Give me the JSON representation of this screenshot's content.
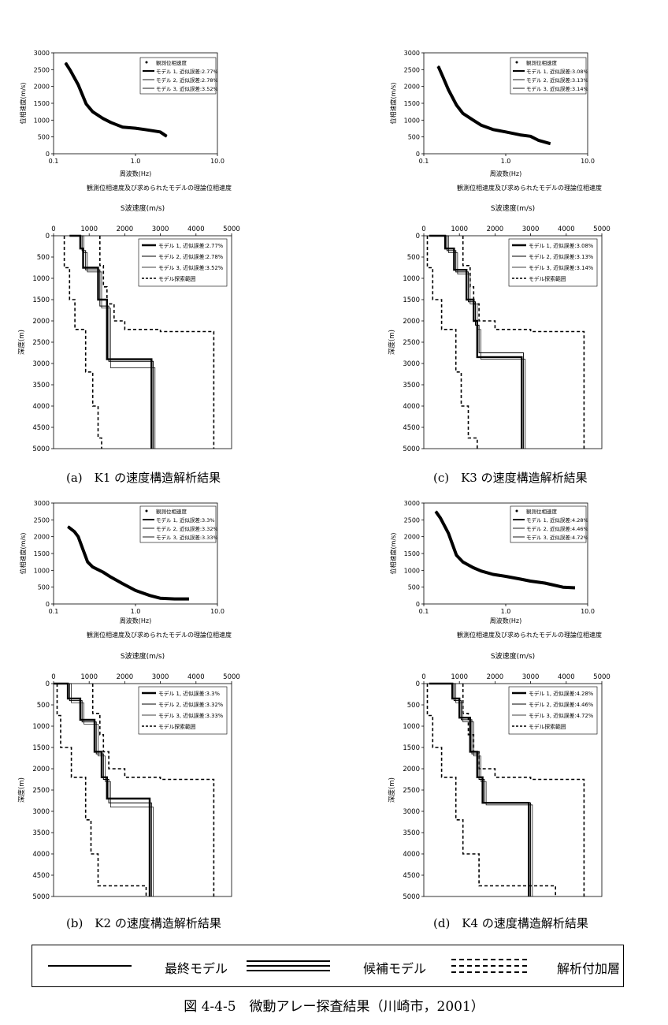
{
  "colors": {
    "ink": "#000000",
    "background": "#ffffff"
  },
  "shared": {
    "phase_xlabel": "周波数(Hz)",
    "phase_ylabel": "位相速度(m/s)",
    "phase_caption": "観測位相速度及び求められたモデルの理論位相速度",
    "vs_xlabel": "S波速度(m/s)",
    "vs_ylabel": "深度(m)",
    "phase_xticks": [
      "0.1",
      "1.0",
      "10.0"
    ],
    "phase_yticks": [
      "0",
      "500",
      "1000",
      "1500",
      "2000",
      "2500",
      "3000"
    ],
    "vs_xticks": [
      "0",
      "1000",
      "2000",
      "3000",
      "4000",
      "5000"
    ],
    "vs_yticks": [
      "0",
      "500",
      "1000",
      "1500",
      "2000",
      "2500",
      "3000",
      "3500",
      "4000",
      "4500",
      "5000"
    ]
  },
  "legend": {
    "final_model": "最終モデル",
    "candidate_model": "候補モデル",
    "added_layer": "解析付加層"
  },
  "figure_caption": "図 4-4-5　微動アレー探査結果（川崎市，2001）",
  "chart_data": [
    {
      "id": "K1",
      "caption": "(a)　K1 の速度構造解析結果",
      "phase": {
        "type": "line",
        "xscale": "log",
        "xlim": [
          0.1,
          10
        ],
        "ylim": [
          0,
          3000
        ],
        "legend": [
          "観測位相速度",
          "モデル 1, 近似誤差:2.77%",
          "モデル 2, 近似誤差:2.78%",
          "モデル 3, 近似誤差:3.52%"
        ],
        "x": [
          0.14,
          0.16,
          0.2,
          0.25,
          0.3,
          0.4,
          0.5,
          0.7,
          1.0,
          1.3,
          2.0,
          2.4
        ],
        "y": [
          2700,
          2480,
          2050,
          1480,
          1250,
          1050,
          930,
          790,
          760,
          720,
          650,
          520
        ]
      },
      "vs": {
        "type": "line",
        "xlim": [
          0,
          5000
        ],
        "ylim": [
          0,
          5000
        ],
        "y_reversed": true,
        "legend": [
          "モデル 1, 近似誤差:2.77%",
          "モデル 2, 近似誤差:2.78%",
          "モデル 3, 近似誤差:3.52%",
          "モデル探索範囲"
        ],
        "series": [
          {
            "x": [
              450,
              750,
              750,
              830,
              830,
              1250,
              1250,
              1500,
              1500,
              2750,
              2750
            ],
            "y": [
              0,
              0,
              300,
              300,
              750,
              750,
              1500,
              1500,
              2900,
              2900,
              5000
            ]
          },
          {
            "x": [
              500,
              800,
              800,
              900,
              900,
              1300,
              1300,
              1550,
              1550,
              2800,
              2800
            ],
            "y": [
              0,
              0,
              350,
              350,
              800,
              800,
              1650,
              1650,
              2950,
              2950,
              5000
            ]
          },
          {
            "x": [
              550,
              850,
              850,
              950,
              950,
              1350,
              1350,
              1600,
              1600,
              2850,
              2850
            ],
            "y": [
              0,
              0,
              400,
              400,
              850,
              850,
              1700,
              1700,
              3100,
              3100,
              5000
            ]
          },
          {
            "x": [
              300,
              300,
              450,
              450,
              600,
              600,
              900,
              900,
              1100,
              1100,
              1250,
              1250,
              1350,
              1350
            ],
            "y": [
              0,
              750,
              750,
              1500,
              1500,
              2200,
              2200,
              3200,
              3200,
              4000,
              4000,
              4750,
              4750,
              5000
            ]
          },
          {
            "x": [
              1300,
              1300,
              1400,
              1400,
              1500,
              1500,
              1700,
              1700,
              2000,
              2000,
              3000,
              3000,
              4500,
              4500
            ],
            "y": [
              0,
              700,
              700,
              1200,
              1200,
              1600,
              1600,
              2000,
              2000,
              2200,
              2200,
              2250,
              2250,
              5000
            ]
          }
        ]
      }
    },
    {
      "id": "K3",
      "caption": "(c)　K3 の速度構造解析結果",
      "phase": {
        "type": "line",
        "xscale": "log",
        "xlim": [
          0.1,
          10
        ],
        "ylim": [
          0,
          3000
        ],
        "legend": [
          "観測位相速度",
          "モデル 1, 近似誤差:3.08%",
          "モデル 2, 近似誤差:3.13%",
          "モデル 3, 近似誤差:3.14%"
        ],
        "x": [
          0.15,
          0.17,
          0.2,
          0.25,
          0.3,
          0.4,
          0.5,
          0.7,
          1.0,
          1.5,
          2.0,
          2.5,
          3.5
        ],
        "y": [
          2600,
          2300,
          1900,
          1450,
          1200,
          1000,
          850,
          720,
          650,
          560,
          520,
          400,
          300
        ]
      },
      "vs": {
        "type": "line",
        "xlim": [
          0,
          5000
        ],
        "ylim": [
          0,
          5000
        ],
        "y_reversed": true,
        "legend": [
          "モデル 1, 近似誤差:3.08%",
          "モデル 2, 近似誤差:3.13%",
          "モデル 3, 近似誤差:3.14%",
          "モデル探索範囲"
        ],
        "series": [
          {
            "x": [
              150,
              600,
              600,
              850,
              850,
              1200,
              1200,
              1400,
              1400,
              1500,
              1500,
              2750,
              2750
            ],
            "y": [
              0,
              0,
              300,
              300,
              800,
              800,
              1500,
              1500,
              2000,
              2000,
              2850,
              2850,
              5000
            ]
          },
          {
            "x": [
              150,
              650,
              650,
              900,
              900,
              1250,
              1250,
              1450,
              1450,
              1550,
              1550,
              2800,
              2800
            ],
            "y": [
              0,
              0,
              350,
              350,
              850,
              850,
              1550,
              1550,
              2100,
              2100,
              2750,
              2750,
              5000
            ]
          },
          {
            "x": [
              150,
              700,
              700,
              950,
              950,
              1300,
              1300,
              1500,
              1500,
              1600,
              1600,
              2850,
              2850
            ],
            "y": [
              0,
              0,
              400,
              400,
              900,
              900,
              1600,
              1600,
              2200,
              2200,
              2900,
              2900,
              5000
            ]
          },
          {
            "x": [
              100,
              100,
              250,
              250,
              500,
              500,
              900,
              900,
              1050,
              1050,
              1250,
              1250,
              1500,
              1500
            ],
            "y": [
              0,
              750,
              750,
              1500,
              1500,
              2200,
              2200,
              3200,
              3200,
              4000,
              4000,
              4750,
              4750,
              5000
            ]
          },
          {
            "x": [
              1100,
              1100,
              1300,
              1300,
              1400,
              1400,
              1550,
              1550,
              2000,
              2000,
              3000,
              3000,
              4500,
              4500
            ],
            "y": [
              0,
              700,
              700,
              1200,
              1200,
              1600,
              1600,
              2000,
              2000,
              2200,
              2200,
              2250,
              2250,
              5000
            ]
          }
        ]
      }
    },
    {
      "id": "K2",
      "caption": "(b)　K2 の速度構造解析結果",
      "phase": {
        "type": "line",
        "xscale": "log",
        "xlim": [
          0.1,
          10
        ],
        "ylim": [
          0,
          3000
        ],
        "legend": [
          "観測位相速度",
          "モデル 1, 近似誤差:3.3%",
          "モデル 2, 近似誤差:3.32%",
          "モデル 3, 近似誤差:3.33%"
        ],
        "x": [
          0.15,
          0.18,
          0.2,
          0.23,
          0.26,
          0.3,
          0.4,
          0.5,
          0.7,
          1.0,
          1.5,
          2.0,
          3.0,
          4.5
        ],
        "y": [
          2300,
          2150,
          2000,
          1600,
          1250,
          1100,
          950,
          800,
          600,
          400,
          250,
          170,
          150,
          150
        ]
      },
      "vs": {
        "type": "line",
        "xlim": [
          0,
          5000
        ],
        "ylim": [
          0,
          5000
        ],
        "y_reversed": true,
        "legend": [
          "モデル 1, 近似誤差:3.3%",
          "モデル 2, 近似誤差:3.32%",
          "モデル 3, 近似誤差:3.33%",
          "モデル探索範囲"
        ],
        "series": [
          {
            "x": [
              0,
              400,
              400,
              750,
              750,
              1150,
              1150,
              1350,
              1350,
              1500,
              1500,
              2700,
              2700
            ],
            "y": [
              0,
              0,
              350,
              350,
              850,
              850,
              1600,
              1600,
              2200,
              2200,
              2700,
              2700,
              5000
            ]
          },
          {
            "x": [
              0,
              450,
              450,
              800,
              800,
              1200,
              1200,
              1400,
              1400,
              1550,
              1550,
              2750,
              2750
            ],
            "y": [
              0,
              0,
              400,
              400,
              900,
              900,
              1650,
              1650,
              2250,
              2250,
              2800,
              2800,
              5000
            ]
          },
          {
            "x": [
              0,
              500,
              500,
              850,
              850,
              1250,
              1250,
              1450,
              1450,
              1600,
              1600,
              2800,
              2800
            ],
            "y": [
              0,
              0,
              450,
              450,
              950,
              950,
              1700,
              1700,
              2300,
              2300,
              2900,
              2900,
              5000
            ]
          },
          {
            "x": [
              100,
              100,
              200,
              200,
              500,
              500,
              900,
              900,
              1050,
              1050,
              1250,
              1250,
              2600,
              2600
            ],
            "y": [
              0,
              750,
              750,
              1500,
              1500,
              2200,
              2200,
              3200,
              3200,
              4000,
              4000,
              4750,
              4750,
              5000
            ]
          },
          {
            "x": [
              1100,
              1100,
              1300,
              1300,
              1400,
              1400,
              1550,
              1550,
              2000,
              2000,
              3000,
              3000,
              4500,
              4500
            ],
            "y": [
              0,
              700,
              700,
              1200,
              1200,
              1600,
              1600,
              2000,
              2000,
              2200,
              2200,
              2250,
              2250,
              5000
            ]
          }
        ]
      }
    },
    {
      "id": "K4",
      "caption": "(d)　K4 の速度構造解析結果",
      "phase": {
        "type": "line",
        "xscale": "log",
        "xlim": [
          0.1,
          10
        ],
        "ylim": [
          0,
          3000
        ],
        "legend": [
          "観測位相速度",
          "モデル 1, 近似誤差:4.28%",
          "モデル 2, 近似誤差:4.46%",
          "モデル 3, 近似誤差:4.72%"
        ],
        "x": [
          0.14,
          0.16,
          0.2,
          0.25,
          0.3,
          0.4,
          0.5,
          0.7,
          1.0,
          1.5,
          2.0,
          3.0,
          5.0,
          7.0
        ],
        "y": [
          2750,
          2550,
          2100,
          1450,
          1250,
          1080,
          980,
          880,
          820,
          740,
          680,
          620,
          500,
          480
        ]
      },
      "vs": {
        "type": "line",
        "xlim": [
          0,
          5000
        ],
        "ylim": [
          0,
          5000
        ],
        "y_reversed": true,
        "legend": [
          "モデル 1, 近似誤差:4.28%",
          "モデル 2, 近似誤差:4.46%",
          "モデル 3, 近似誤差:4.72%",
          "モデル探索範囲"
        ],
        "series": [
          {
            "x": [
              150,
              800,
              800,
              1000,
              1000,
              1300,
              1300,
              1500,
              1500,
              1650,
              1650,
              2950,
              2950
            ],
            "y": [
              0,
              0,
              350,
              350,
              800,
              800,
              1600,
              1600,
              2200,
              2200,
              2800,
              2800,
              5000
            ]
          },
          {
            "x": [
              150,
              850,
              850,
              1050,
              1050,
              1350,
              1350,
              1550,
              1550,
              1700,
              1700,
              3000,
              3000
            ],
            "y": [
              0,
              0,
              400,
              400,
              850,
              850,
              1650,
              1650,
              2250,
              2250,
              2800,
              2800,
              5000
            ]
          },
          {
            "x": [
              150,
              900,
              900,
              1100,
              1100,
              1400,
              1400,
              1600,
              1600,
              1750,
              1750,
              3050,
              3050
            ],
            "y": [
              0,
              0,
              450,
              450,
              900,
              900,
              1700,
              1700,
              2300,
              2300,
              2850,
              2850,
              5000
            ]
          },
          {
            "x": [
              100,
              100,
              250,
              250,
              500,
              500,
              900,
              900,
              1100,
              1100,
              1550,
              1550,
              3700,
              3700
            ],
            "y": [
              0,
              750,
              750,
              1500,
              1500,
              2200,
              2200,
              3200,
              3200,
              4000,
              4000,
              4750,
              4750,
              5000
            ]
          },
          {
            "x": [
              1100,
              1100,
              1250,
              1250,
              1400,
              1400,
              1550,
              1550,
              2000,
              2000,
              3000,
              3000,
              4500,
              4500
            ],
            "y": [
              0,
              700,
              700,
              1200,
              1200,
              1600,
              1600,
              2000,
              2000,
              2200,
              2200,
              2250,
              2250,
              5000
            ]
          }
        ]
      }
    }
  ]
}
